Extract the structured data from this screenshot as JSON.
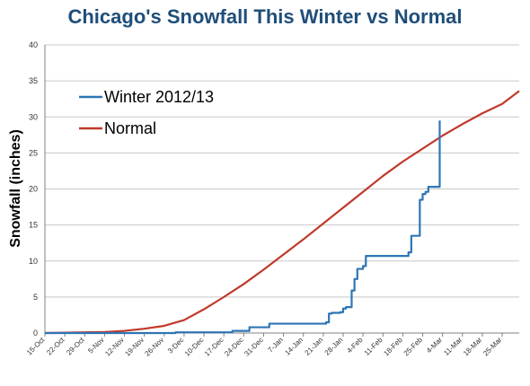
{
  "chart_data": {
    "type": "line",
    "title": "Chicago's Snowfall This Winter vs Normal",
    "ylabel": "Snowfall (inches)",
    "xlabel": "",
    "ylim": [
      0,
      40
    ],
    "yticks": [
      0,
      5,
      10,
      15,
      20,
      25,
      30,
      35,
      40
    ],
    "x_ticks": [
      "15-Oct",
      "22-Oct",
      "29-Oct",
      "5-Nov",
      "12-Nov",
      "19-Nov",
      "26-Nov",
      "3-Dec",
      "10-Dec",
      "17-Dec",
      "24-Dec",
      "31-Dec",
      "7-Jan",
      "14-Jan",
      "21-Jan",
      "28-Jan",
      "4-Feb",
      "11-Feb",
      "18-Feb",
      "25-Feb",
      "4-Mar",
      "11-Mar",
      "18-Mar",
      "25-Mar"
    ],
    "grid": true,
    "legend": "top-left",
    "colors": {
      "winter": "#2e75b6",
      "normal": "#c0392b"
    },
    "series": [
      {
        "name": "Winter 2012/13",
        "x": [
          "15-Oct",
          "31-Oct",
          "14-Nov",
          "30-Nov",
          "10-Dec",
          "17-Dec",
          "20-Dec",
          "24-Dec",
          "26-Dec",
          "31-Dec",
          "2-Jan",
          "14-Jan",
          "20-Jan",
          "22-Jan",
          "23-Jan",
          "24-Jan",
          "27-Jan",
          "28-Jan",
          "29-Jan",
          "31-Jan",
          "1-Feb",
          "2-Feb",
          "4-Feb",
          "5-Feb",
          "7-Feb",
          "18-Feb",
          "20-Feb",
          "21-Feb",
          "23-Feb",
          "24-Feb",
          "25-Feb",
          "26-Feb",
          "27-Feb",
          "28-Feb",
          "1-Mar",
          "2-Mar",
          "3-Mar"
        ],
        "values": [
          0.0,
          0.0,
          0.0,
          0.1,
          0.1,
          0.1,
          0.3,
          0.3,
          0.8,
          0.8,
          1.3,
          1.3,
          1.3,
          1.5,
          2.7,
          2.8,
          2.9,
          3.4,
          3.6,
          5.9,
          7.5,
          8.9,
          9.3,
          10.7,
          10.7,
          10.7,
          11.2,
          13.5,
          13.5,
          18.5,
          19.3,
          19.6,
          20.3,
          20.3,
          20.3,
          20.3,
          29.5
        ]
      },
      {
        "name": "Normal",
        "x": [
          "15-Oct",
          "22-Oct",
          "29-Oct",
          "5-Nov",
          "12-Nov",
          "19-Nov",
          "26-Nov",
          "3-Dec",
          "10-Dec",
          "17-Dec",
          "24-Dec",
          "31-Dec",
          "7-Jan",
          "14-Jan",
          "21-Jan",
          "28-Jan",
          "4-Feb",
          "11-Feb",
          "18-Feb",
          "25-Feb",
          "4-Mar",
          "11-Mar",
          "18-Mar",
          "25-Mar",
          "31-Mar"
        ],
        "values": [
          0.0,
          0.05,
          0.1,
          0.15,
          0.3,
          0.6,
          1.0,
          1.8,
          3.3,
          5.0,
          6.8,
          8.8,
          10.9,
          13.0,
          15.2,
          17.4,
          19.6,
          21.8,
          23.8,
          25.6,
          27.4,
          29.0,
          30.5,
          31.8,
          33.6
        ]
      }
    ]
  }
}
